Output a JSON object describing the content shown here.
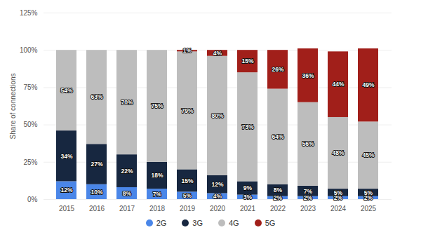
{
  "chart_data": {
    "type": "bar",
    "stacked": true,
    "data_labels": true,
    "grid": true,
    "legend": "bottom",
    "ylabel": "Share of connections",
    "categories": [
      "2015",
      "2016",
      "2017",
      "2018",
      "2019",
      "2020",
      "2021",
      "2022",
      "2023",
      "2024",
      "2025"
    ],
    "ylim": [
      0,
      125
    ],
    "yticks": [
      {
        "value": 0,
        "label": "0%"
      },
      {
        "value": 25,
        "label": "25%"
      },
      {
        "value": 50,
        "label": "50%"
      },
      {
        "value": 75,
        "label": "75%"
      },
      {
        "value": 100,
        "label": "100%"
      },
      {
        "value": 125,
        "label": "125%"
      }
    ],
    "series": [
      {
        "name": "2G",
        "color": "#4a86e8",
        "values": [
          12,
          10,
          8,
          7,
          5,
          4,
          3,
          2,
          2,
          2,
          2
        ],
        "value_labels": [
          "12%",
          "10%",
          "8%",
          "7%",
          "5%",
          "4%",
          "3%",
          "2%",
          "2%",
          "2%",
          "2%"
        ]
      },
      {
        "name": "3G",
        "color": "#172740",
        "values": [
          34,
          27,
          22,
          18,
          15,
          12,
          9,
          8,
          7,
          5,
          5
        ],
        "value_labels": [
          "34%",
          "27%",
          "22%",
          "18%",
          "15%",
          "12%",
          "9%",
          "8%",
          "7%",
          "5%",
          "5%"
        ]
      },
      {
        "name": "4G",
        "color": "#bdbdbd",
        "values": [
          54,
          63,
          70,
          75,
          79,
          80,
          73,
          64,
          56,
          48,
          45
        ],
        "value_labels": [
          "54%",
          "63%",
          "70%",
          "75%",
          "79%",
          "80%",
          "73%",
          "64%",
          "56%",
          "48%",
          "45%"
        ]
      },
      {
        "name": "5G",
        "color": "#a11f1a",
        "values": [
          null,
          null,
          null,
          null,
          1,
          4,
          15,
          26,
          36,
          44,
          49
        ],
        "value_labels": [
          null,
          null,
          null,
          null,
          "1%",
          "4%",
          "15%",
          "26%",
          "36%",
          "44%",
          "49%"
        ]
      }
    ]
  }
}
